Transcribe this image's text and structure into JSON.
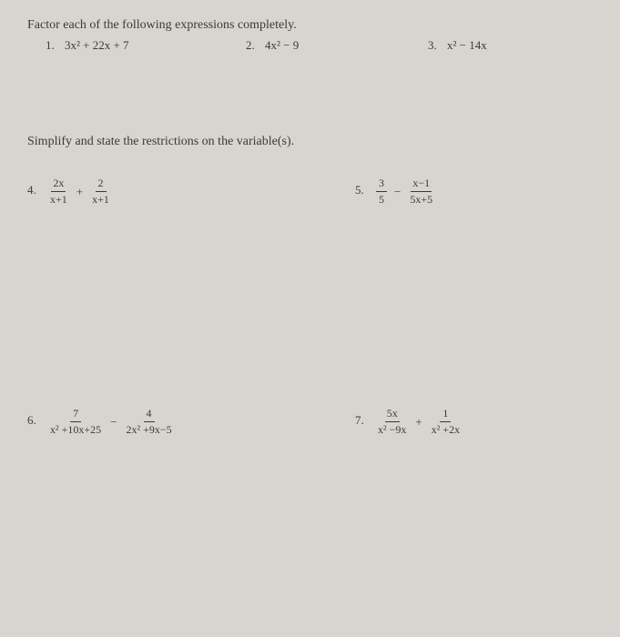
{
  "doc": {
    "background_color": "#d8d5d0",
    "text_color": "#3a3a3a",
    "font_family": "Times New Roman"
  },
  "section1": {
    "instruction": "Factor each of the following expressions completely."
  },
  "p1": {
    "num": "1.",
    "expr": "3x² + 22x + 7"
  },
  "p2": {
    "num": "2.",
    "expr": "4x² − 9"
  },
  "p3": {
    "num": "3.",
    "expr": "x² − 14x"
  },
  "section2": {
    "instruction": "Simplify and state the restrictions on the variable(s)."
  },
  "p4": {
    "num": "4.",
    "f1_top": "2x",
    "f1_bot": "x+1",
    "op": "+",
    "f2_top": "2",
    "f2_bot": "x+1"
  },
  "p5": {
    "num": "5.",
    "f1_top": "3",
    "f1_bot": "5",
    "op": "−",
    "f2_top": "x−1",
    "f2_bot": "5x+5"
  },
  "p6": {
    "num": "6.",
    "f1_top": "7",
    "f1_bot": "x² +10x+25",
    "op": "−",
    "f2_top": "4",
    "f2_bot": "2x² +9x−5"
  },
  "p7": {
    "num": "7.",
    "f1_top": "5x",
    "f1_bot": "x² −9x",
    "op": "+",
    "f2_top": "1",
    "f2_bot": "x² +2x"
  }
}
